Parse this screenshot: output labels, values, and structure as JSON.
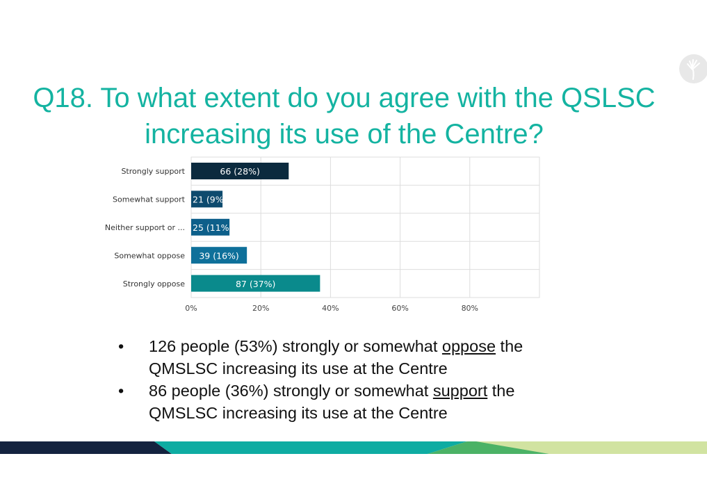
{
  "title": "Q18. To what extent do you agree with the QSLSC increasing its use of the Centre?",
  "chart_data": {
    "type": "bar",
    "orientation": "horizontal",
    "categories": [
      "Strongly support",
      "Somewhat support",
      "Neither support or ...",
      "Somewhat oppose",
      "Strongly oppose"
    ],
    "values": [
      28,
      9,
      11,
      16,
      37
    ],
    "counts": [
      66,
      21,
      25,
      39,
      87
    ],
    "data_labels": [
      "66 (28%)",
      "21 (9%",
      "25 (11%",
      "39 (16%)",
      "87 (37%)"
    ],
    "colors": [
      "#0b2a3e",
      "#0d4a6e",
      "#0d5f8a",
      "#0e709a",
      "#0a8a8c"
    ],
    "xlim": [
      0,
      100
    ],
    "x_ticks": [
      "0%",
      "20%",
      "40%",
      "60%",
      "80%"
    ],
    "grid": true,
    "title": "",
    "xlabel": "",
    "ylabel": ""
  },
  "bullets": [
    {
      "pre": "126 people (53%) strongly or somewhat ",
      "emph": "oppose",
      "post": " the",
      "line2": "QMSLSC increasing its use at the Centre"
    },
    {
      "pre": "86 people (36%) strongly or somewhat ",
      "emph": "support",
      "post": " the",
      "line2": "QMSLSC increasing its use at the Centre"
    }
  ],
  "bullet_char": "•",
  "logo_icon": "kangaroo-paw-logo",
  "footer_colors": [
    "#14233f",
    "#0eaca2",
    "#4bb266",
    "#d1e3a1"
  ]
}
